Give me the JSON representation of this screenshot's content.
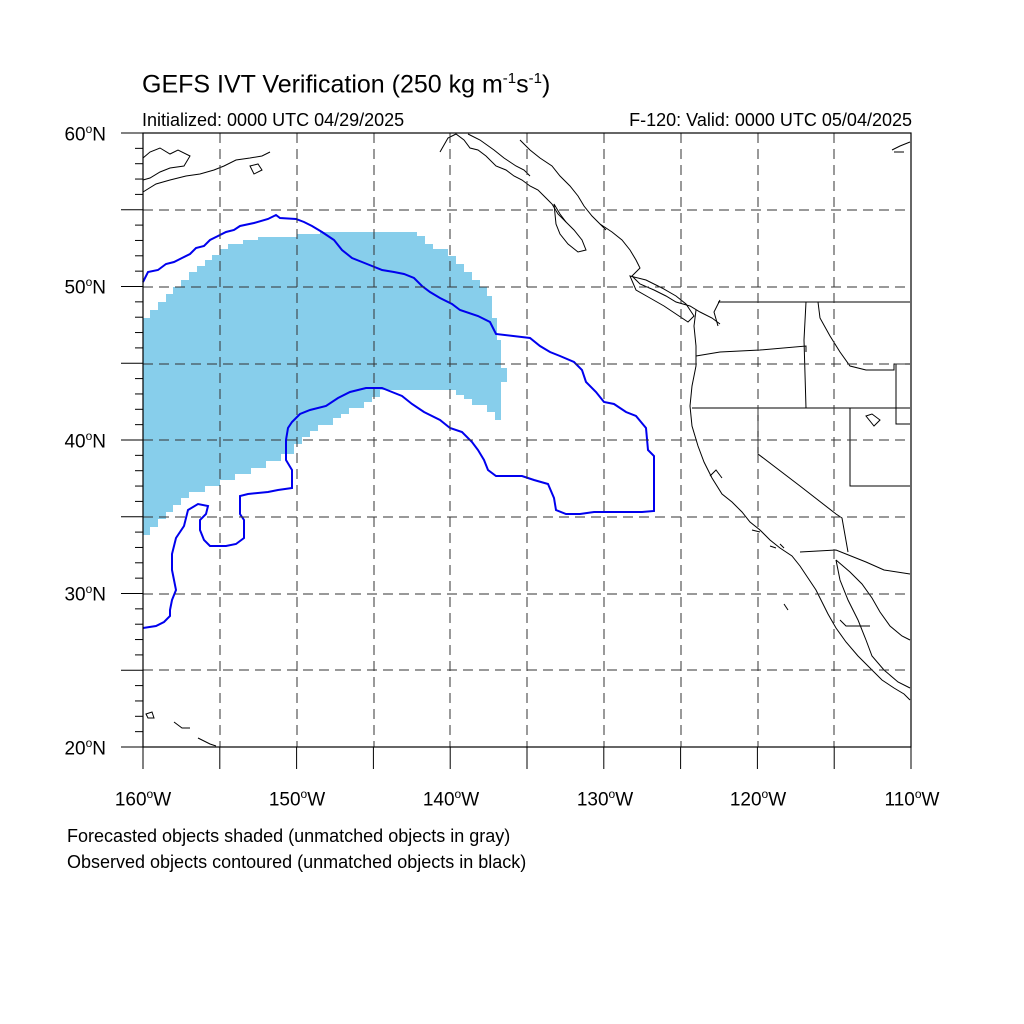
{
  "title_main": "GEFS IVT Verification (250 kg m",
  "title_exp1": "-1",
  "title_mid": "s",
  "title_exp2": "-1",
  "title_end": ")",
  "initialized": "Initialized: 0000 UTC 04/29/2025",
  "valid": "F-120: Valid: 0000 UTC 05/04/2025",
  "lat_labels": [
    {
      "num": "60",
      "hemi": "N"
    },
    {
      "num": "50",
      "hemi": "N"
    },
    {
      "num": "40",
      "hemi": "N"
    },
    {
      "num": "30",
      "hemi": "N"
    },
    {
      "num": "20",
      "hemi": "N"
    }
  ],
  "lon_labels": [
    {
      "num": "160",
      "hemi": "W"
    },
    {
      "num": "150",
      "hemi": "W"
    },
    {
      "num": "140",
      "hemi": "W"
    },
    {
      "num": "130",
      "hemi": "W"
    },
    {
      "num": "120",
      "hemi": "W"
    },
    {
      "num": "110",
      "hemi": "W"
    }
  ],
  "note_forecast": "Forecasted objects shaded (unmatched objects in gray)",
  "note_observed": "Observed objects contoured (unmatched objects in black)",
  "colors": {
    "forecast_fill": "#87ceeb",
    "observed_contour": "#0000ee",
    "coast": "#000000",
    "grid": "#333333"
  }
}
